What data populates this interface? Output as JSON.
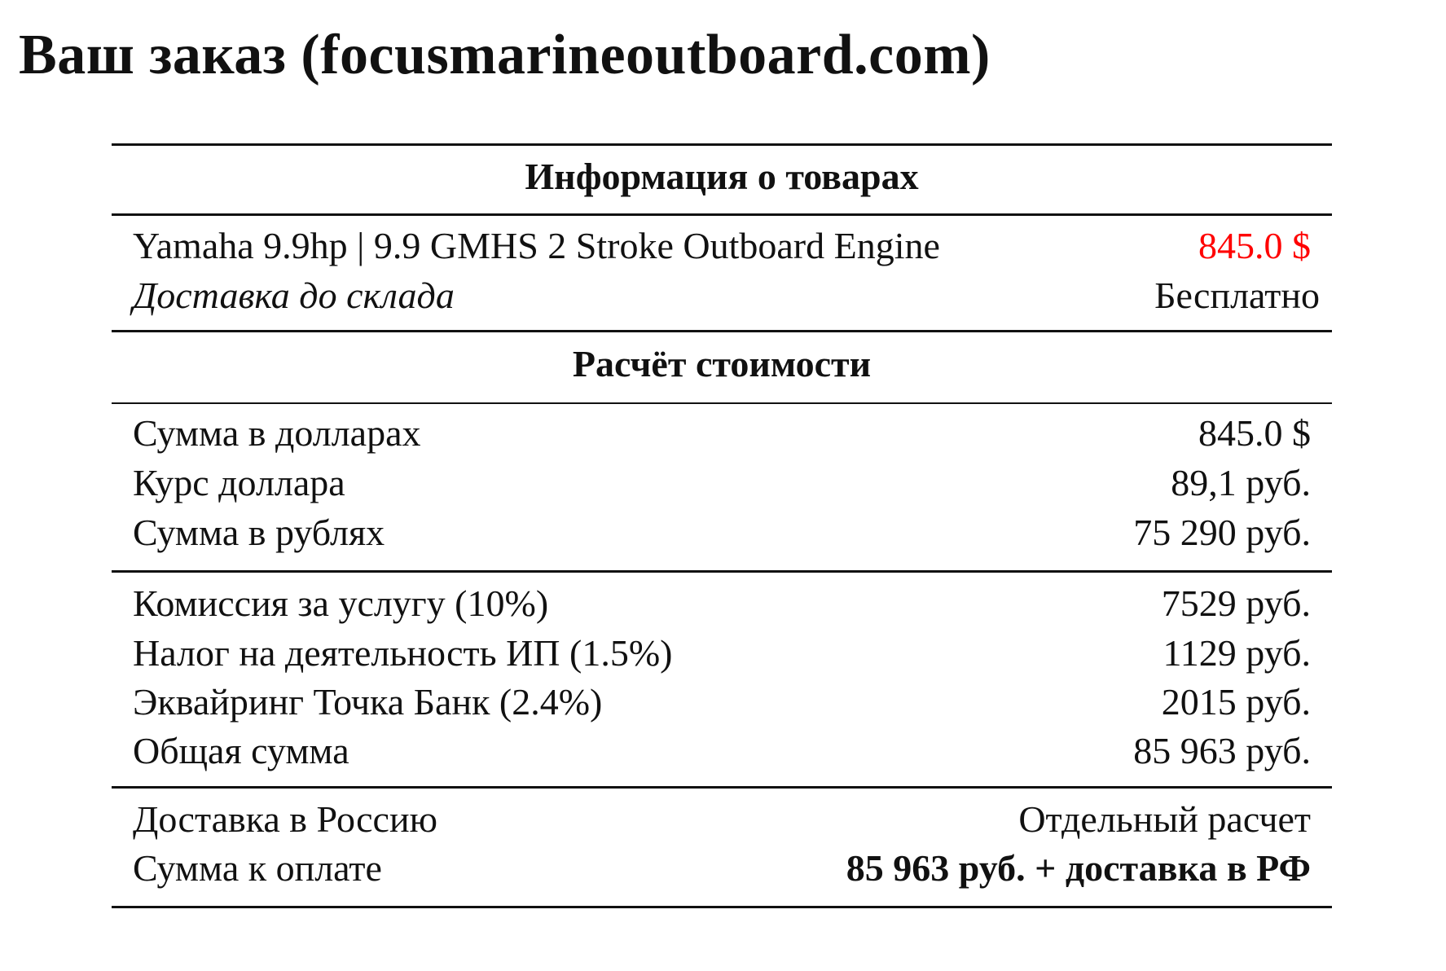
{
  "title": "Ваш заказ (focusmarineoutboard.com)",
  "products_section": {
    "heading": "Информация о товарах",
    "item": {
      "name": "Yamaha 9.9hp | 9.9 GMHS 2 Stroke Outboard Engine",
      "price": "845.0 $",
      "price_color": "#ff0000"
    },
    "delivery": {
      "label": "Доставка до склада",
      "value": "Бесплатно"
    }
  },
  "calc_section": {
    "heading": "Расчёт стоимости",
    "rows": [
      {
        "label": "Сумма в долларах",
        "value": "845.0 $"
      },
      {
        "label": "Курс доллара",
        "value": "89,1 руб."
      },
      {
        "label": "Сумма в рублях",
        "value": "75 290 руб."
      },
      {
        "label": "Комиссия за услугу (10%)",
        "value": "7529 руб."
      },
      {
        "label": "Налог на деятельность ИП (1.5%)",
        "value": "1129 руб."
      },
      {
        "label": "Эквайринг Точка Банк (2.4%)",
        "value": "2015 руб."
      },
      {
        "label": "Общая сумма",
        "value": "85 963 руб."
      },
      {
        "label": "Доставка в Россию",
        "value": "Отдельный расчет"
      },
      {
        "label": "Сумма к оплате",
        "value": "85 963 руб. + доставка в РФ"
      }
    ]
  }
}
